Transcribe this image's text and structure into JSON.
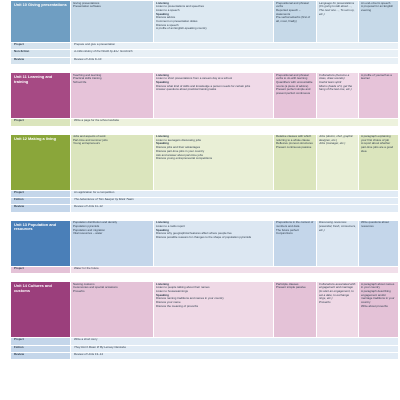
{
  "units": [
    {
      "title": "Unit 10 Giving presentations",
      "col2": [
        "Giving presentations",
        "Presentation software"
      ],
      "col3": [
        [
          "Listening",
          true
        ],
        [
          "Listen to presentations and speeches",
          false
        ],
        [
          "Listen to a speech",
          false
        ],
        [
          "Speaking",
          true
        ],
        [
          "Discuss advice",
          false
        ],
        [
          "Comment on presentation slides",
          false
        ],
        [
          "Discuss a speech",
          false
        ],
        [
          "A profile of an English-speaking country",
          false
        ]
      ],
      "col4": [
        "Prepositional and phrasal verbs",
        "Reported speech – statements",
        "Pre-verbal adverbs (first of all, most, finally)"
      ],
      "col5": [
        "Language for presentations (It’s going to talk about…, The next one…, To sum up, etc.)"
      ],
      "col6": [
        "An end-of-term speech",
        "A proposal for an English evening"
      ]
    },
    {
      "title": "Unit 11 Learning and training",
      "col2": [
        "Teaching and learning",
        "Practical skills training",
        "School life"
      ],
      "col3": [
        [
          "Listening",
          true
        ],
        [
          "Listen to short presentations from a careers day at a school",
          false
        ],
        [
          "Speaking",
          true
        ],
        [
          "Discuss what kind of skills and knowledge a person needs for certain jobs",
          false
        ],
        [
          "Answer questions about practical training tasks",
          false
        ]
      ],
      "col4": [
        "Prepositional and phrasal verbs to do with learning",
        "Quantifiers with uncountable nouns (a piece of advice)",
        "Present perfect simple and present perfect continuous"
      ],
      "col5": [
        "Collocations (become a class, draw sounds)",
        "Useful team spirit",
        "Idioms (loads of it, get the hang of the last one, etc.)"
      ],
      "col6": [
        "A profile of yourself as a learner"
      ]
    },
    {
      "title": "Unit 12 Making a living",
      "col2": [
        "Jobs and aspects of work",
        "Part-time and summer jobs",
        "Young entrepreneurs"
      ],
      "col3": [
        [
          "Listening",
          true
        ],
        [
          "Listen to teenagers discussing jobs",
          false
        ],
        [
          "Speaking",
          true
        ],
        [
          "Discuss jobs and their advantages",
          false
        ],
        [
          "Discuss part-time jobs in your country",
          false
        ],
        [
          "Ask and answer about part-time jobs",
          false
        ],
        [
          "Discuss young entrepreneurial competitions",
          false
        ]
      ],
      "col4": [
        "Relative clauses with which referring to a whole clause",
        "Reflexive pronoun structures",
        "Present continuous passive"
      ],
      "col5": [
        "Jobs (doctor, chef, graphic designer, etc.)",
        "Jobs (manager, etc.)"
      ],
      "col6": [
        "A paragraph explaining your first choice of job",
        "A report about whether part-time jobs are a good idea"
      ]
    },
    {
      "title": "Unit 13 Population and resources",
      "col2": [
        "Population distribution and density",
        "Population pyramids",
        "Population and migration",
        "Vital resources – water"
      ],
      "col3": [
        [
          "Listening",
          true
        ],
        [
          "Listen to a radio report",
          false
        ],
        [
          "Speaking",
          true
        ],
        [
          "Discuss why geographical features affect where people live",
          false
        ],
        [
          "Discuss possible reasons for changes to the shape of population pyramids",
          false
        ]
      ],
      "col4": [
        "Prepositions in the context of numbers and data",
        "The future perfect",
        "Conjunctions"
      ],
      "col5": [
        "Discussing resources (essential, fresh, consumers, etc.)"
      ],
      "col6": [
        "Write questions about resources"
      ]
    },
    {
      "title": "Unit 14 Cultures and customs",
      "col2": [
        "Naming customs",
        "Ceremonies and special occasions",
        "Proverbs"
      ],
      "col3": [
        [
          "Listening",
          true
        ],
        [
          "Listen to people talking about their names",
          false
        ],
        [
          "Listen to housewarmings",
          false
        ],
        [
          "Speaking",
          true
        ],
        [
          "Discuss naming traditions and names in your country",
          false
        ],
        [
          "Discuss your name",
          false
        ],
        [
          "Discuss the meaning of proverbs",
          false
        ]
      ],
      "col4": [
        "Participle clauses",
        "Present simple passive"
      ],
      "col5": [
        "Collocations associated with engagement and marriage (to start an engagement, to set a date, to exchange rings, etc.)",
        "Proverbs"
      ],
      "col6": [
        "A paragraph about names in your country",
        "A paragraph describing engagement and/or marriage traditions in your country",
        "Write about proverbs"
      ]
    }
  ],
  "lists": [
    [
      [
        "Project",
        "Prepare and give a presentation"
      ],
      [
        "Non-fiction",
        "A Little History of the World by E.H. Gombrich"
      ],
      [
        "Review",
        "Review of Units 9–10"
      ]
    ],
    [
      [
        "Project",
        "Write a page for the school website"
      ]
    ],
    [
      [
        "Project",
        "An application for a competition"
      ],
      [
        "Fiction",
        "The Adventures of Tom Sawyer by Mark Twain"
      ],
      [
        "Review",
        "Review of Units 11–12"
      ]
    ],
    [
      [
        "Project",
        "Water for the future"
      ]
    ],
    [
      [
        "Project",
        "Write a short story"
      ],
      [
        "Fiction",
        "They Don’t Mean It! By Lensey Namioka"
      ],
      [
        "Review",
        "Review of Units 13–14"
      ]
    ]
  ]
}
